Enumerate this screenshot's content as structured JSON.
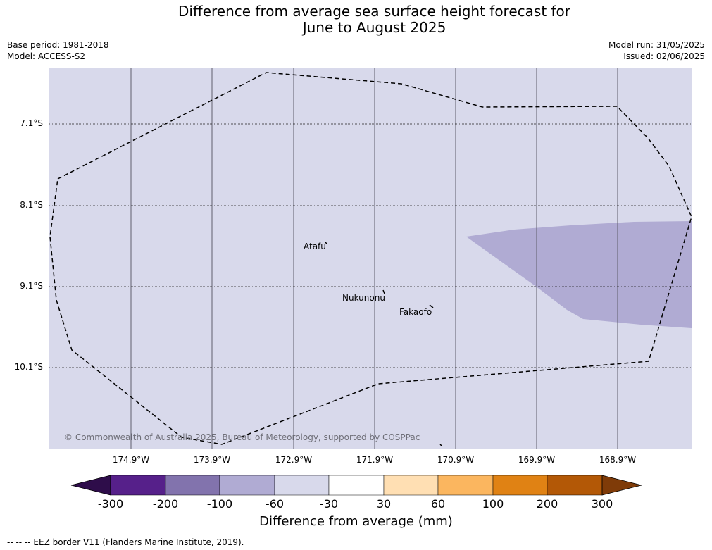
{
  "title_line1": "Difference from average sea surface height forecast for",
  "title_line2": "June to August 2025",
  "base_period": "Base period: 1981-2018",
  "model": "Model: ACCESS-S2",
  "model_run": "Model run: 31/05/2025",
  "issued": "Issued: 02/06/2025",
  "lat_labels": [
    "7.1°S",
    "8.1°S",
    "9.1°S",
    "10.1°S"
  ],
  "lon_labels": [
    "174.9°W",
    "173.9°W",
    "172.9°W",
    "171.9°W",
    "170.9°W",
    "169.9°W",
    "168.9°W"
  ],
  "places": [
    "Atafu",
    "Nukunonu",
    "Fakaofo"
  ],
  "copyright": "© Commonwealth of Australia 2025, Bureau of Meteorology, supported by COSPPac",
  "colorbar": {
    "ticks": [
      "-300",
      "-200",
      "-100",
      "-60",
      "-30",
      "30",
      "60",
      "100",
      "200",
      "300"
    ],
    "colors": [
      "#2e0d4a",
      "#56208a",
      "#8273ad",
      "#b0abd3",
      "#d8d9eb",
      "#ffffff",
      "#ffdfb3",
      "#fbb65f",
      "#e08214",
      "#b35806",
      "#7f3b08"
    ],
    "label": "Difference from average (mm)"
  },
  "footnote": "-- -- -- EEZ border V11 (Flanders Marine Institute, 2019)."
}
